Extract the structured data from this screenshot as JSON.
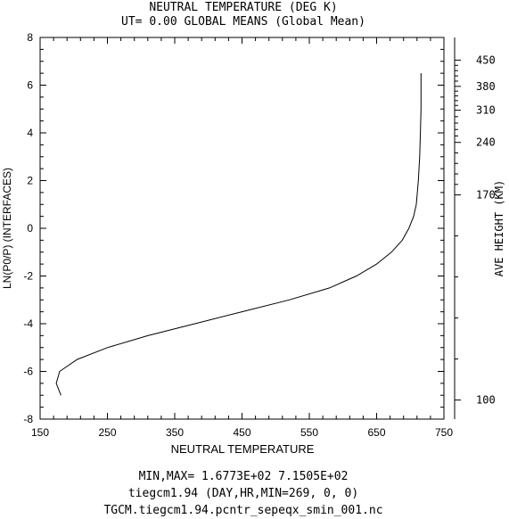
{
  "chart_data": {
    "type": "line",
    "title": "NEUTRAL TEMPERATURE (DEG K)",
    "subtitle": "UT= 0.00 GLOBAL MEANS (Global Mean)",
    "xlabel": "NEUTRAL TEMPERATURE",
    "ylabel": "LN(P0/P) (INTERFACES)",
    "y2label": "AVE HEIGHT (KM)",
    "xlim": [
      150,
      750
    ],
    "ylim": [
      -8,
      8
    ],
    "x_ticks": [
      "150",
      "250",
      "350",
      "450",
      "550",
      "650",
      "750"
    ],
    "y_ticks": [
      "-8",
      "-6",
      "-4",
      "-2",
      "0",
      "2",
      "4",
      "6",
      "8"
    ],
    "y2_ticks": [
      {
        "label": "100",
        "lnp": -7.2
      },
      {
        "label": "170",
        "lnp": 1.4
      },
      {
        "label": "240",
        "lnp": 3.6
      },
      {
        "label": "310",
        "lnp": 4.95
      },
      {
        "label": "380",
        "lnp": 5.95
      },
      {
        "label": "450",
        "lnp": 7.05
      }
    ],
    "grid": false,
    "series": [
      {
        "x": [
          181,
          174,
          179,
          205,
          250,
          310,
          380,
          450,
          520,
          580,
          620,
          650,
          672,
          688,
          698,
          705,
          709,
          712,
          714,
          715,
          716,
          716
        ],
        "y": [
          -7,
          -6.5,
          -6,
          -5.5,
          -5,
          -4.5,
          -4,
          -3.5,
          -3,
          -2.5,
          -2,
          -1.5,
          -1,
          -0.5,
          0,
          0.5,
          1,
          2,
          3,
          4,
          5,
          6.5
        ]
      }
    ]
  },
  "footer": {
    "line1": "MIN,MAX=  1.6773E+02  7.1505E+02",
    "line2": "tiegcm1.94 (DAY,HR,MIN=269, 0, 0)",
    "line3": "TGCM.tiegcm1.94.pcntr_sepeqx_smin_001.nc"
  }
}
